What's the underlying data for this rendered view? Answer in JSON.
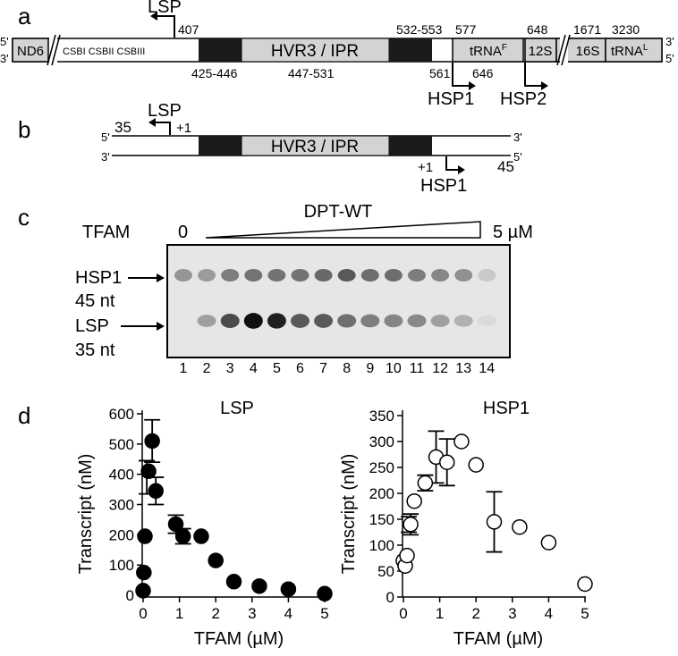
{
  "panels": {
    "a": {
      "letter": "a",
      "lsp_label": "LSP",
      "lsp_pos": "407",
      "pos_532_553": "532-553",
      "pos_577": "577",
      "pos_648": "648",
      "pos_1671": "1671",
      "pos_3230": "3230",
      "strand_5_left": "5'",
      "strand_3_left": "3'",
      "strand_3_right": "3'",
      "strand_5_right": "5'",
      "nd6": "ND6",
      "csb": "CSBI CSBII CSBIII",
      "hvr3": "HVR3 / IPR",
      "trnaf_main": "tRNA",
      "trnaf_sup": "F",
      "s12": "12S",
      "s16": "16S",
      "trnal_main": "tRNA",
      "trnal_sup": "L",
      "pos_425_446": "425-446",
      "pos_447_531": "447-531",
      "pos_561": "561",
      "pos_646": "646",
      "hsp1": "HSP1",
      "hsp2": "HSP2"
    },
    "b": {
      "letter": "b",
      "lsp_label": "LSP",
      "len_35": "35",
      "plus1_top": "+1",
      "strand_5_left": "5'",
      "strand_3_left": "3'",
      "strand_3_right": "3'",
      "strand_5_right": "5'",
      "hvr3": "HVR3 / IPR",
      "plus1_bottom": "+1",
      "len_45": "45",
      "hsp1": "HSP1"
    },
    "c": {
      "letter": "c",
      "dpt_label": "DPT-WT",
      "tfam_label": "TFAM",
      "zero": "0",
      "five_um": "5 µM",
      "hsp1_label": "HSP1",
      "hsp1_nt": "45 nt",
      "lsp_label": "LSP",
      "lsp_nt": "35 nt",
      "lanes": [
        "1",
        "2",
        "3",
        "4",
        "5",
        "6",
        "7",
        "8",
        "9",
        "10",
        "11",
        "12",
        "13",
        "14"
      ],
      "hsp1_intensity": [
        0.38,
        0.35,
        0.5,
        0.55,
        0.55,
        0.55,
        0.6,
        0.68,
        0.58,
        0.58,
        0.5,
        0.45,
        0.4,
        0.12
      ],
      "lsp_intensity": [
        0.0,
        0.3,
        0.68,
        0.95,
        0.88,
        0.62,
        0.62,
        0.52,
        0.45,
        0.42,
        0.4,
        0.3,
        0.22,
        0.03
      ]
    },
    "d": {
      "letter": "d"
    }
  },
  "chart_data": [
    {
      "type": "scatter",
      "title": "LSP",
      "xlabel": "TFAM (µM)",
      "ylabel": "Transcript (nM)",
      "xlim": [
        0,
        5
      ],
      "ylim": [
        0,
        600
      ],
      "xticks": [
        "0",
        "1",
        "2",
        "3",
        "4",
        "5"
      ],
      "yticks": [
        "0",
        "100",
        "200",
        "300",
        "400",
        "500",
        "600"
      ],
      "marker": "filled-circle",
      "x": [
        0,
        0.02,
        0.05,
        0.15,
        0.25,
        0.35,
        0.9,
        1.1,
        1.6,
        2.0,
        2.5,
        3.2,
        4.0,
        5.0
      ],
      "y": [
        15,
        75,
        195,
        410,
        510,
        345,
        235,
        195,
        195,
        115,
        45,
        30,
        20,
        5
      ],
      "error": [
        0,
        0,
        0,
        0,
        70,
        45,
        30,
        25,
        0,
        0,
        0,
        0,
        0,
        0
      ],
      "extra_errorbars": [
        {
          "x": 0.1,
          "y": 390,
          "error": 55
        }
      ]
    },
    {
      "type": "scatter",
      "title": "HSP1",
      "xlabel": "TFAM (µM)",
      "ylabel": "Transcript (nM)",
      "xlim": [
        0,
        5
      ],
      "ylim": [
        0,
        350
      ],
      "xticks": [
        "0",
        "1",
        "2",
        "3",
        "4",
        "5"
      ],
      "yticks": [
        "0",
        "50",
        "100",
        "150",
        "200",
        "250",
        "300",
        "350"
      ],
      "marker": "open-circle",
      "x": [
        0,
        0.05,
        0.1,
        0.2,
        0.3,
        0.6,
        0.9,
        1.2,
        1.6,
        2.0,
        2.5,
        3.2,
        4.0,
        5.0
      ],
      "y": [
        70,
        60,
        80,
        140,
        185,
        220,
        270,
        260,
        300,
        255,
        145,
        135,
        105,
        25
      ],
      "error": [
        0,
        0,
        0,
        20,
        0,
        15,
        50,
        45,
        0,
        0,
        58,
        0,
        0,
        0
      ],
      "extra_errorbars": [
        {
          "x": 0.15,
          "y": 140,
          "error": 15
        }
      ]
    }
  ]
}
